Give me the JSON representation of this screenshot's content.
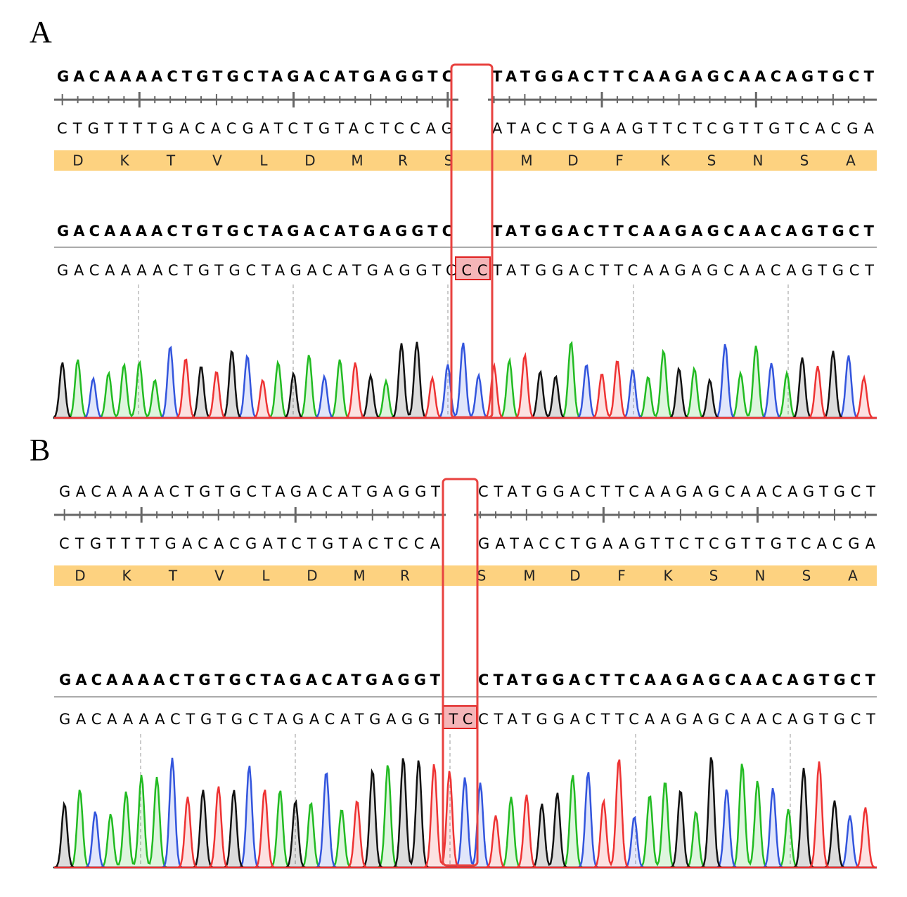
{
  "colors": {
    "A": "#22bb22",
    "C": "#3355dd",
    "G": "#111111",
    "T": "#ee3333",
    "translation_bar": "#fdd280",
    "highlight": "#f5b5b8",
    "box": "#e8423f"
  },
  "panels": [
    {
      "label": "A",
      "top_left": "GACAAAACTGTGCTAGACATGAGGTC",
      "top_right": "TATGGACTTCAAGAGCAACAGTGCT",
      "comp_left": "CTGTTTTGACACGATCTGTACTCCAG",
      "comp_right": "ATACCTGAAGTTCTCGTTGTCACGA",
      "aa_left": [
        "D",
        "K",
        "T",
        "V",
        "L",
        "D",
        "M",
        "R",
        "S"
      ],
      "aa_right": [
        "M",
        "D",
        "F",
        "K",
        "S",
        "N",
        "S",
        "A"
      ],
      "ref_left": "GACAAAACTGTGCTAGACATGAGGTC",
      "ref_right": "TATGGACTTCAAGAGCAACAGTGCT",
      "read": "GACAAAACTGTGCTAGACATGAGGTCCCTATGGACTTCAAGAGCAACAGTGCT",
      "inserted": "CC"
    },
    {
      "label": "B",
      "top_left": "GACAAAACTGTGCTAGACATGAGGT",
      "top_right": "CTATGGACTTCAAGAGCAACAGTGCT",
      "comp_left": "CTGTTTTGACACGATCTGTACTCCA",
      "comp_right": "GATACCTGAAGTTCTCGTTGTCACGA",
      "aa_left": [
        "D",
        "K",
        "T",
        "V",
        "L",
        "D",
        "M",
        "R"
      ],
      "aa_right": [
        "S",
        "M",
        "D",
        "F",
        "K",
        "S",
        "N",
        "S",
        "A"
      ],
      "ref_left": "GACAAAACTGTGCTAGACATGAGGT",
      "ref_right": "CTATGGACTTCAAGAGCAACAGTGCT",
      "read": "GACAAAACTGTGCTAGACATGAGGTTCCTATGGACTTCAAGAGCAACAGTGCT",
      "inserted": "TC"
    }
  ]
}
